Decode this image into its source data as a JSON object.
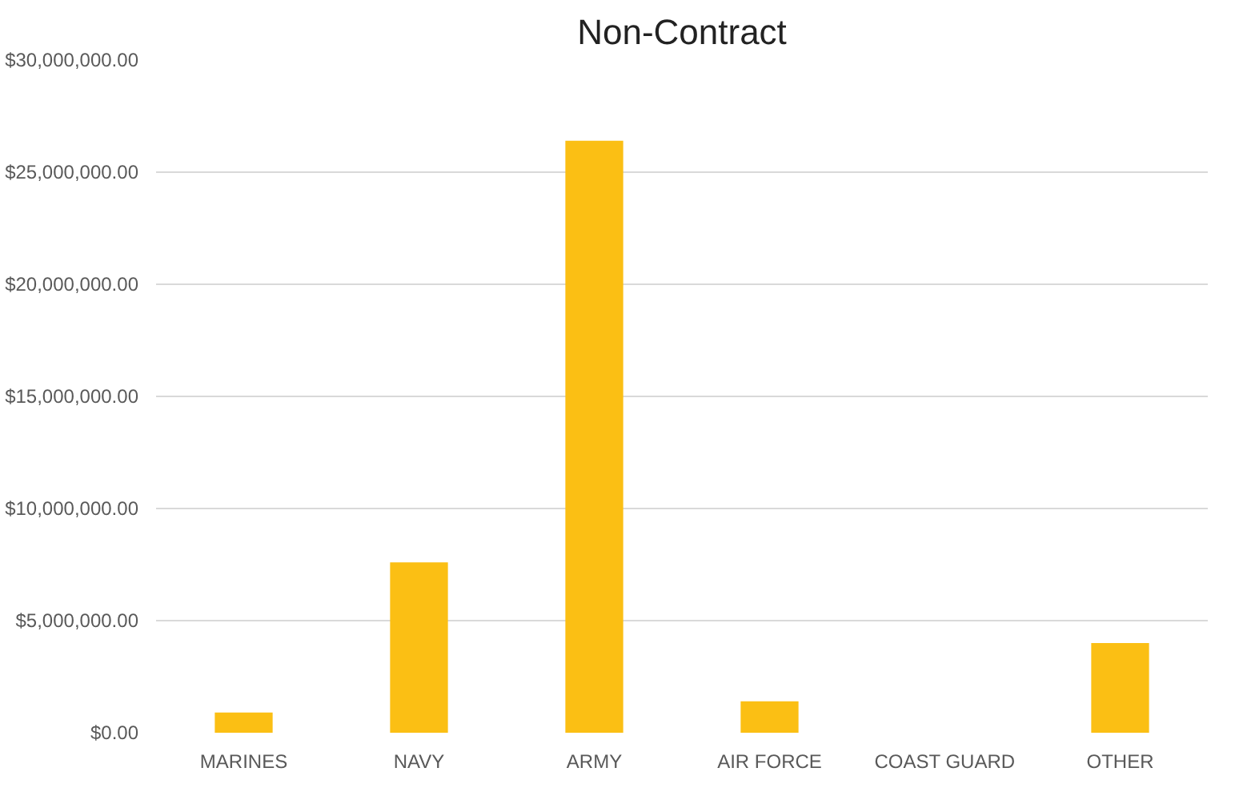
{
  "chart_data": {
    "type": "bar",
    "title": "Non-Contract",
    "categories": [
      "MARINES",
      "NAVY",
      "ARMY",
      "AIR FORCE",
      "COAST GUARD",
      "OTHER"
    ],
    "values": [
      900000,
      7600000,
      26400000,
      1400000,
      0,
      4000000
    ],
    "color": "#fbbf14",
    "ylim": [
      0,
      30000000
    ],
    "yticks": [
      {
        "value": 0,
        "label": "$0.00"
      },
      {
        "value": 5000000,
        "label": "$5,000,000.00"
      },
      {
        "value": 10000000,
        "label": "$10,000,000.00"
      },
      {
        "value": 15000000,
        "label": "$15,000,000.00"
      },
      {
        "value": 20000000,
        "label": "$20,000,000.00"
      },
      {
        "value": 25000000,
        "label": "$25,000,000.00"
      },
      {
        "value": 30000000,
        "label": "$30,000,000.00"
      }
    ],
    "grid": "y"
  }
}
